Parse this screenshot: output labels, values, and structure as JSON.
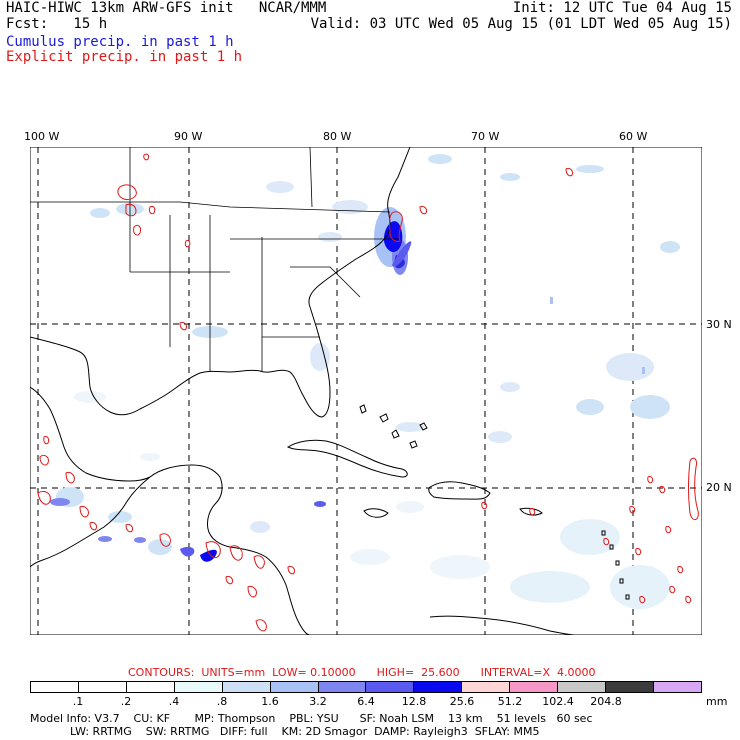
{
  "header": {
    "title": "HAIC-HIWC 13km ARW-GFS init   NCAR/MMM",
    "fcst": "Fcst:   15 h",
    "init": "Init: 12 UTC Tue 04 Aug 15",
    "valid": "Valid: 03 UTC Wed 05 Aug 15 (01 LDT Wed 05 Aug 15)",
    "cumulus_label": "Cumulus precip. in past 1 h",
    "explicit_label": "Explicit precip. in past 1 h"
  },
  "map": {
    "lon_labels": [
      "100 W",
      "90 W",
      "80 W",
      "70 W",
      "60 W"
    ],
    "lat_labels": [
      "30 N",
      "20 N"
    ],
    "colors": {
      "coastline": "#000000",
      "grid": "#000000",
      "explicit_contour": "#e01818",
      "cumulus_light": "#cfe3f7",
      "cumulus_medium": "#9fb8f0",
      "cumulus_heavy": "#2b2bd9"
    }
  },
  "contours_line": "CONTOURS:  UNITS=mm  LOW= 0.10000      HIGH=  25.600      INTERVAL=X  4.0000",
  "colorbar": {
    "units": "mm",
    "ticks": [
      ".1",
      ".2",
      ".4",
      ".8",
      "1.6",
      "3.2",
      "6.4",
      "12.8",
      "25.6",
      "51.2",
      "102.4",
      "204.8"
    ],
    "colors": [
      "#ffffff",
      "#ffffff",
      "#ffffff",
      "#e8fafa",
      "#cde0f5",
      "#a9c2f5",
      "#7f86f0",
      "#5a5af0",
      "#0a0af0",
      "#ffd6d6",
      "#f598c8",
      "#c8c8c8",
      "#3c3c3c",
      "#d8a8f5"
    ]
  },
  "info": {
    "line1": "Model Info: V3.7    CU: KF       MP: Thompson    PBL: YSU      SF: Noah LSM    13 km    51 levels   60 sec",
    "line2": "LW: RRTMG    SW: RRTMG   DIFF: full    KM: 2D Smagor  DAMP: Rayleigh3  SFLAY: MM5"
  }
}
